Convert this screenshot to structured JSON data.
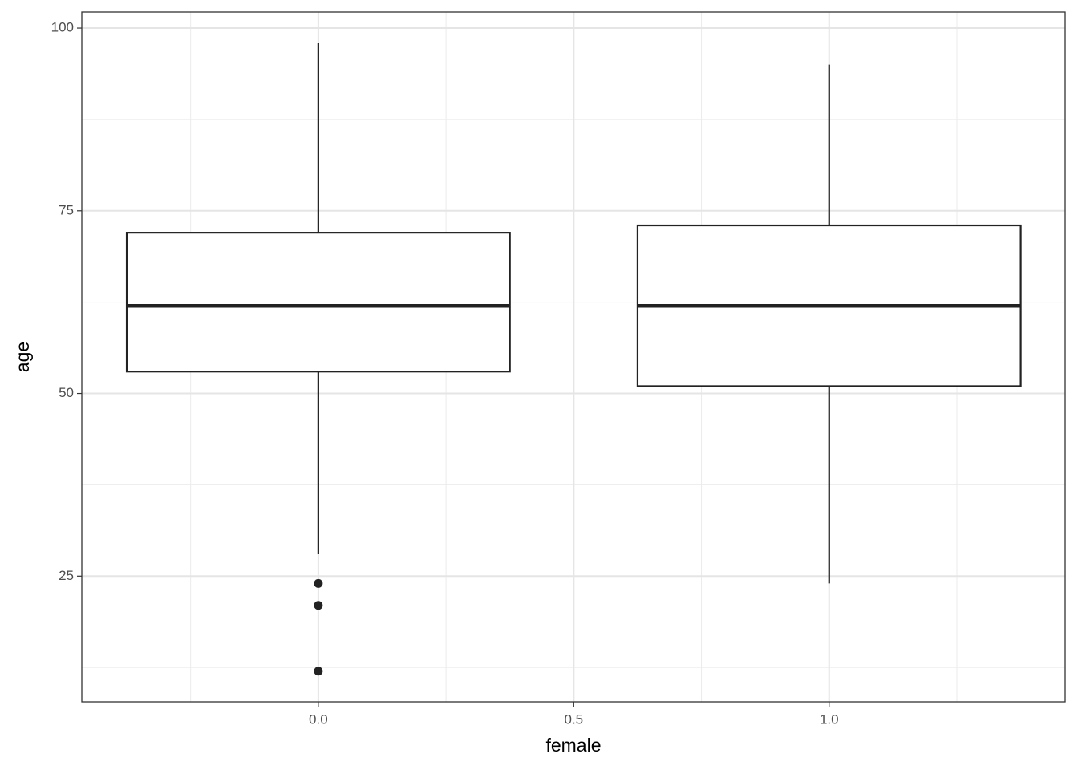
{
  "chart_data": {
    "type": "box",
    "x_label": "female",
    "y_label": "age",
    "xlim": [
      -0.463,
      1.462
    ],
    "ylim": [
      7.8,
      102.2
    ],
    "xticks": [
      {
        "value": 0,
        "label": "0.0"
      },
      0.5,
      {
        "value": 1,
        "label": "1.0"
      }
    ],
    "yticks": [
      25,
      50,
      75,
      100
    ],
    "grid": true,
    "box_width": 0.75,
    "color": "#222222",
    "boxes": [
      {
        "x": 0,
        "min": 28,
        "q1": 53,
        "median": 62,
        "q3": 72,
        "max": 98,
        "outliers": [
          24,
          21,
          12
        ]
      },
      {
        "x": 1,
        "min": 24,
        "q1": 51,
        "median": 62,
        "q3": 73,
        "max": 95,
        "outliers": []
      }
    ]
  }
}
